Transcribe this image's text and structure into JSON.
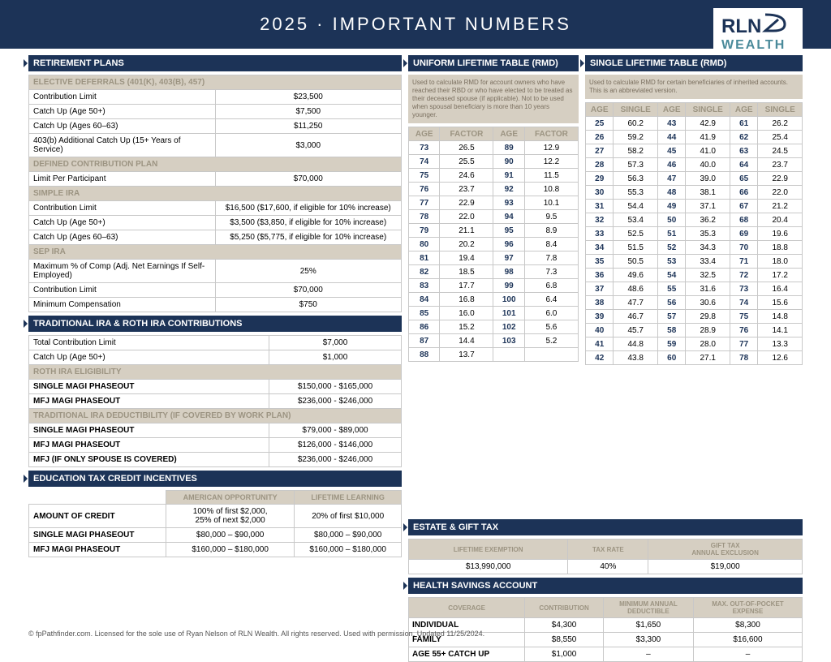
{
  "header": {
    "title": "2025 · IMPORTANT NUMBERS",
    "logo_top": "RLN",
    "logo_bottom": "WEALTH"
  },
  "retirement": {
    "title": "RETIREMENT PLANS",
    "elective": {
      "sub": "ELECTIVE DEFERRALS (401(K), 403(B), 457)",
      "rows": [
        {
          "l": "Contribution Limit",
          "v": "$23,500"
        },
        {
          "l": "Catch Up (Age 50+)",
          "v": "$7,500"
        },
        {
          "l": "Catch Up (Ages 60–63)",
          "v": "$11,250"
        },
        {
          "l": "403(b) Additional Catch Up (15+ Years of Service)",
          "v": "$3,000"
        }
      ]
    },
    "dcplan": {
      "sub": "DEFINED CONTRIBUTION PLAN",
      "rows": [
        {
          "l": "Limit Per Participant",
          "v": "$70,000"
        }
      ]
    },
    "simple": {
      "sub": "SIMPLE IRA",
      "rows": [
        {
          "l": "Contribution Limit",
          "v": "$16,500 ($17,600, if eligible for 10% increase)"
        },
        {
          "l": "Catch Up (Age 50+)",
          "v": "$3,500 ($3,850, if eligible for 10% increase)"
        },
        {
          "l": "Catch Up (Ages 60–63)",
          "v": "$5,250 ($5,775, if eligible for 10% increase)"
        }
      ]
    },
    "sep": {
      "sub": "SEP IRA",
      "rows": [
        {
          "l": "Maximum % of Comp (Adj. Net Earnings If Self-Employed)",
          "v": "25%"
        },
        {
          "l": "Contribution Limit",
          "v": "$70,000"
        },
        {
          "l": "Minimum Compensation",
          "v": "$750"
        }
      ]
    }
  },
  "ira": {
    "title": "TRADITIONAL IRA & ROTH IRA CONTRIBUTIONS",
    "rows": [
      {
        "l": "Total Contribution Limit",
        "v": "$7,000"
      },
      {
        "l": "Catch Up (Age 50+)",
        "v": "$1,000"
      }
    ],
    "roth": {
      "sub": "ROTH IRA ELIGIBILITY",
      "rows": [
        {
          "l": "SINGLE MAGI PHASEOUT",
          "v": "$150,000 - $165,000"
        },
        {
          "l": "MFJ MAGI PHASEOUT",
          "v": "$236,000 - $246,000"
        }
      ]
    },
    "trad": {
      "sub": "TRADITIONAL IRA DEDUCTIBILITY (IF COVERED BY WORK PLAN)",
      "rows": [
        {
          "l": "SINGLE MAGI PHASEOUT",
          "v": "$79,000 - $89,000"
        },
        {
          "l": "MFJ MAGI PHASEOUT",
          "v": "$126,000 - $146,000"
        },
        {
          "l": "MFJ (IF ONLY SPOUSE IS COVERED)",
          "v": "$236,000 - $246,000"
        }
      ]
    }
  },
  "edu": {
    "title": "EDUCATION TAX CREDIT INCENTIVES",
    "cols": [
      "",
      "AMERICAN OPPORTUNITY",
      "LIFETIME LEARNING"
    ],
    "rows": [
      {
        "l": "AMOUNT OF CREDIT",
        "a": "100% of first $2,000,\n25% of next $2,000",
        "b": "20% of first $10,000"
      },
      {
        "l": "SINGLE MAGI PHASEOUT",
        "a": "$80,000 – $90,000",
        "b": "$80,000 – $90,000"
      },
      {
        "l": "MFJ MAGI PHASEOUT",
        "a": "$160,000 – $180,000",
        "b": "$160,000 – $180,000"
      }
    ]
  },
  "rmd_uniform": {
    "title": "UNIFORM LIFETIME TABLE (RMD)",
    "note": "Used to calculate RMD for account owners who have reached their RBD or who have elected to be treated as their deceased spouse (if applicable). Not to be used when spousal beneficiary is more than 10 years younger.",
    "hdrs": [
      "AGE",
      "FACTOR",
      "AGE",
      "FACTOR"
    ],
    "rows": [
      [
        "73",
        "26.5",
        "89",
        "12.9"
      ],
      [
        "74",
        "25.5",
        "90",
        "12.2"
      ],
      [
        "75",
        "24.6",
        "91",
        "11.5"
      ],
      [
        "76",
        "23.7",
        "92",
        "10.8"
      ],
      [
        "77",
        "22.9",
        "93",
        "10.1"
      ],
      [
        "78",
        "22.0",
        "94",
        "9.5"
      ],
      [
        "79",
        "21.1",
        "95",
        "8.9"
      ],
      [
        "80",
        "20.2",
        "96",
        "8.4"
      ],
      [
        "81",
        "19.4",
        "97",
        "7.8"
      ],
      [
        "82",
        "18.5",
        "98",
        "7.3"
      ],
      [
        "83",
        "17.7",
        "99",
        "6.8"
      ],
      [
        "84",
        "16.8",
        "100",
        "6.4"
      ],
      [
        "85",
        "16.0",
        "101",
        "6.0"
      ],
      [
        "86",
        "15.2",
        "102",
        "5.6"
      ],
      [
        "87",
        "14.4",
        "103",
        "5.2"
      ],
      [
        "88",
        "13.7",
        "",
        ""
      ]
    ]
  },
  "rmd_single": {
    "title": "SINGLE LIFETIME TABLE (RMD)",
    "note": "Used to calculate RMD for certain beneficiaries of inherited accounts. This is an abbreviated version.",
    "hdrs": [
      "AGE",
      "SINGLE",
      "AGE",
      "SINGLE",
      "AGE",
      "SINGLE"
    ],
    "rows": [
      [
        "25",
        "60.2",
        "43",
        "42.9",
        "61",
        "26.2"
      ],
      [
        "26",
        "59.2",
        "44",
        "41.9",
        "62",
        "25.4"
      ],
      [
        "27",
        "58.2",
        "45",
        "41.0",
        "63",
        "24.5"
      ],
      [
        "28",
        "57.3",
        "46",
        "40.0",
        "64",
        "23.7"
      ],
      [
        "29",
        "56.3",
        "47",
        "39.0",
        "65",
        "22.9"
      ],
      [
        "30",
        "55.3",
        "48",
        "38.1",
        "66",
        "22.0"
      ],
      [
        "31",
        "54.4",
        "49",
        "37.1",
        "67",
        "21.2"
      ],
      [
        "32",
        "53.4",
        "50",
        "36.2",
        "68",
        "20.4"
      ],
      [
        "33",
        "52.5",
        "51",
        "35.3",
        "69",
        "19.6"
      ],
      [
        "34",
        "51.5",
        "52",
        "34.3",
        "70",
        "18.8"
      ],
      [
        "35",
        "50.5",
        "53",
        "33.4",
        "71",
        "18.0"
      ],
      [
        "36",
        "49.6",
        "54",
        "32.5",
        "72",
        "17.2"
      ],
      [
        "37",
        "48.6",
        "55",
        "31.6",
        "73",
        "16.4"
      ],
      [
        "38",
        "47.7",
        "56",
        "30.6",
        "74",
        "15.6"
      ],
      [
        "39",
        "46.7",
        "57",
        "29.8",
        "75",
        "14.8"
      ],
      [
        "40",
        "45.7",
        "58",
        "28.9",
        "76",
        "14.1"
      ],
      [
        "41",
        "44.8",
        "59",
        "28.0",
        "77",
        "13.3"
      ],
      [
        "42",
        "43.8",
        "60",
        "27.1",
        "78",
        "12.6"
      ]
    ]
  },
  "estate": {
    "title": "ESTATE & GIFT TAX",
    "hdrs": [
      "LIFETIME EXEMPTION",
      "TAX RATE",
      "GIFT TAX\nANNUAL EXCLUSION"
    ],
    "row": [
      "$13,990,000",
      "40%",
      "$19,000"
    ]
  },
  "hsa": {
    "title": "HEALTH SAVINGS ACCOUNT",
    "hdrs": [
      "COVERAGE",
      "CONTRIBUTION",
      "MINIMUM ANNUAL\nDEDUCTIBLE",
      "MAX. OUT-OF-POCKET\nEXPENSE"
    ],
    "rows": [
      {
        "c": "INDIVIDUAL",
        "a": "$4,300",
        "b": "$1,650",
        "d": "$8,300"
      },
      {
        "c": "FAMILY",
        "a": "$8,550",
        "b": "$3,300",
        "d": "$16,600"
      },
      {
        "c": "AGE 55+ CATCH UP",
        "a": "$1,000",
        "b": "–",
        "d": "–"
      }
    ]
  },
  "footer": "© fpPathfinder.com. Licensed for the sole use of Ryan Nelson of RLN Wealth. All rights reserved. Used with permission. Updated 11/25/2024."
}
